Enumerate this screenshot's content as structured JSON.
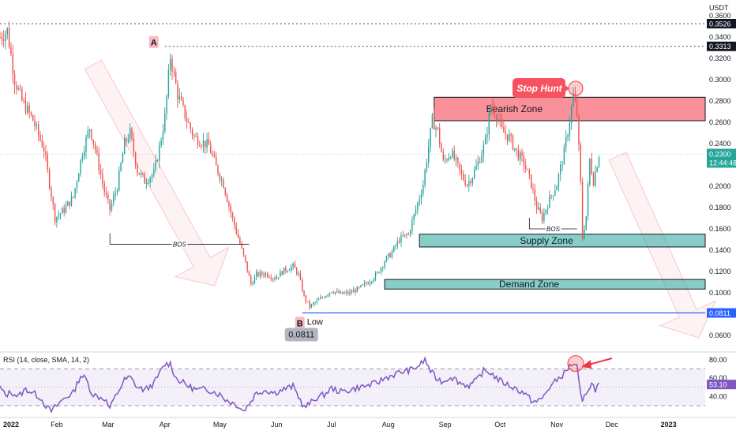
{
  "chart_data": [
    {
      "type": "candlestick",
      "currency_label": "USDT",
      "y_axis_ticks": [
        "0.3600",
        "0.3400",
        "0.3200",
        "0.3000",
        "0.2800",
        "0.2600",
        "0.2400",
        "0.2200",
        "0.2000",
        "0.1800",
        "0.1600",
        "0.1400",
        "0.1200",
        "0.1000",
        "0.0800",
        "0.0600"
      ],
      "ylim": [
        0.05,
        0.362
      ],
      "x_axis_ticks": [
        {
          "label": "2022",
          "t": 0
        },
        {
          "label": "Feb",
          "t": 31
        },
        {
          "label": "Mar",
          "t": 59
        },
        {
          "label": "Apr",
          "t": 90
        },
        {
          "label": "May",
          "t": 120
        },
        {
          "label": "Jun",
          "t": 151
        },
        {
          "label": "Jul",
          "t": 181
        },
        {
          "label": "Aug",
          "t": 212
        },
        {
          "label": "Sep",
          "t": 243
        },
        {
          "label": "Oct",
          "t": 273
        },
        {
          "label": "Nov",
          "t": 304
        },
        {
          "label": "Dec",
          "t": 334
        },
        {
          "label": "2023",
          "t": 365
        }
      ],
      "xlim": [
        0,
        385
      ],
      "closes_path": [
        [
          0,
          0.34
        ],
        [
          4,
          0.346
        ],
        [
          8,
          0.3
        ],
        [
          12,
          0.28
        ],
        [
          18,
          0.262
        ],
        [
          24,
          0.235
        ],
        [
          28,
          0.192
        ],
        [
          30,
          0.17
        ],
        [
          35,
          0.178
        ],
        [
          40,
          0.19
        ],
        [
          45,
          0.232
        ],
        [
          49,
          0.255
        ],
        [
          52,
          0.235
        ],
        [
          57,
          0.195
        ],
        [
          60,
          0.178
        ],
        [
          64,
          0.2
        ],
        [
          68,
          0.24
        ],
        [
          71,
          0.25
        ],
        [
          75,
          0.215
        ],
        [
          79,
          0.205
        ],
        [
          84,
          0.212
        ],
        [
          87,
          0.236
        ],
        [
          90,
          0.265
        ],
        [
          93,
          0.322
        ],
        [
          97,
          0.286
        ],
        [
          102,
          0.262
        ],
        [
          106,
          0.246
        ],
        [
          110,
          0.242
        ],
        [
          114,
          0.238
        ],
        [
          118,
          0.218
        ],
        [
          122,
          0.202
        ],
        [
          126,
          0.175
        ],
        [
          130,
          0.152
        ],
        [
          134,
          0.128
        ],
        [
          137,
          0.108
        ],
        [
          140,
          0.117
        ],
        [
          145,
          0.118
        ],
        [
          150,
          0.114
        ],
        [
          155,
          0.121
        ],
        [
          160,
          0.125
        ],
        [
          163,
          0.117
        ],
        [
          166,
          0.096
        ],
        [
          169,
          0.087
        ],
        [
          173,
          0.092
        ],
        [
          177,
          0.097
        ],
        [
          181,
          0.102
        ],
        [
          186,
          0.099
        ],
        [
          191,
          0.1
        ],
        [
          196,
          0.104
        ],
        [
          201,
          0.11
        ],
        [
          206,
          0.118
        ],
        [
          210,
          0.13
        ],
        [
          214,
          0.138
        ],
        [
          218,
          0.15
        ],
        [
          223,
          0.155
        ],
        [
          227,
          0.178
        ],
        [
          231,
          0.202
        ],
        [
          234,
          0.238
        ],
        [
          236,
          0.262
        ],
        [
          239,
          0.252
        ],
        [
          242,
          0.222
        ],
        [
          246,
          0.232
        ],
        [
          249,
          0.222
        ],
        [
          252,
          0.21
        ],
        [
          255,
          0.202
        ],
        [
          258,
          0.21
        ],
        [
          261,
          0.222
        ],
        [
          265,
          0.242
        ],
        [
          268,
          0.276
        ],
        [
          271,
          0.268
        ],
        [
          274,
          0.252
        ],
        [
          278,
          0.246
        ],
        [
          282,
          0.232
        ],
        [
          286,
          0.222
        ],
        [
          290,
          0.202
        ],
        [
          293,
          0.18
        ],
        [
          296,
          0.17
        ],
        [
          300,
          0.188
        ],
        [
          304,
          0.202
        ],
        [
          308,
          0.232
        ],
        [
          311,
          0.262
        ],
        [
          313,
          0.285
        ],
        [
          315,
          0.268
        ],
        [
          317,
          0.202
        ],
        [
          318,
          0.152
        ],
        [
          320,
          0.172
        ],
        [
          322,
          0.225
        ],
        [
          324,
          0.205
        ],
        [
          327,
          0.23
        ]
      ],
      "current_price": "0.2300",
      "countdown": "12:44:48",
      "level_high_1": "0.3526",
      "level_high_2": "0.3313",
      "level_low": "0.0811",
      "supply_zone": {
        "label": "Supply Zone",
        "y0": 0.143,
        "y1": 0.155,
        "t0": 229,
        "t1": 385
      },
      "demand_zone": {
        "label": "Demand Zone",
        "y0": 0.1035,
        "y1": 0.1125,
        "t0": 210,
        "t1": 385
      },
      "bearish_zone": {
        "label": "Bearish Zone",
        "y0": 0.2615,
        "y1": 0.2835,
        "t0": 237,
        "t1": 385
      },
      "stop_hunt": {
        "label": "Stop Hunt",
        "t": 313,
        "y": 0.2948
      },
      "point_a": {
        "label": "A",
        "t": 90,
        "y": 0.3313
      },
      "point_b": {
        "label": "B",
        "t": 165,
        "y": 0.0811
      },
      "low_label": "Low",
      "low_value": "0.0811",
      "bos_1": {
        "label": "BOS",
        "t0": 60,
        "t1": 136,
        "y": 0.1455
      },
      "bos_2": {
        "label": "BOS",
        "t0": 289,
        "t1": 315,
        "y": 0.16
      }
    },
    {
      "type": "line",
      "title": "RSI (14, close, SMA, 14, 2)",
      "y_axis_ticks": [
        "80.00",
        "60.00",
        "40.00"
      ],
      "ylim": [
        22,
        90
      ],
      "upper_band": 70,
      "lower_band": 30,
      "mid_band": 50,
      "current_value": "53.10",
      "rsi_path": [
        [
          0,
          50
        ],
        [
          3,
          41
        ],
        [
          6,
          45
        ],
        [
          10,
          40
        ],
        [
          14,
          48
        ],
        [
          18,
          44
        ],
        [
          22,
          39
        ],
        [
          26,
          27
        ],
        [
          28,
          24
        ],
        [
          31,
          30
        ],
        [
          35,
          38
        ],
        [
          40,
          44
        ],
        [
          44,
          63
        ],
        [
          47,
          59
        ],
        [
          50,
          44
        ],
        [
          53,
          40
        ],
        [
          57,
          38
        ],
        [
          60,
          27
        ],
        [
          63,
          40
        ],
        [
          68,
          58
        ],
        [
          71,
          61
        ],
        [
          75,
          50
        ],
        [
          79,
          47
        ],
        [
          84,
          54
        ],
        [
          87,
          65
        ],
        [
          90,
          75
        ],
        [
          93,
          76
        ],
        [
          96,
          60
        ],
        [
          100,
          55
        ],
        [
          104,
          50
        ],
        [
          108,
          47
        ],
        [
          112,
          48
        ],
        [
          116,
          46
        ],
        [
          120,
          42
        ],
        [
          123,
          37
        ],
        [
          126,
          34
        ],
        [
          130,
          30
        ],
        [
          133,
          24
        ],
        [
          136,
          32
        ],
        [
          140,
          44
        ],
        [
          145,
          47
        ],
        [
          150,
          44
        ],
        [
          155,
          48
        ],
        [
          160,
          51
        ],
        [
          163,
          40
        ],
        [
          166,
          28
        ],
        [
          169,
          32
        ],
        [
          173,
          39
        ],
        [
          177,
          42
        ],
        [
          181,
          49
        ],
        [
          186,
          45
        ],
        [
          191,
          47
        ],
        [
          196,
          50
        ],
        [
          201,
          52
        ],
        [
          206,
          55
        ],
        [
          210,
          60
        ],
        [
          214,
          63
        ],
        [
          218,
          66
        ],
        [
          222,
          68
        ],
        [
          226,
          70
        ],
        [
          230,
          76
        ],
        [
          232,
          80
        ],
        [
          235,
          68
        ],
        [
          238,
          60
        ],
        [
          242,
          56
        ],
        [
          246,
          62
        ],
        [
          249,
          58
        ],
        [
          252,
          54
        ],
        [
          256,
          52
        ],
        [
          260,
          57
        ],
        [
          264,
          68
        ],
        [
          268,
          66
        ],
        [
          271,
          60
        ],
        [
          274,
          56
        ],
        [
          278,
          52
        ],
        [
          282,
          48
        ],
        [
          286,
          44
        ],
        [
          290,
          36
        ],
        [
          293,
          34
        ],
        [
          296,
          38
        ],
        [
          300,
          50
        ],
        [
          304,
          58
        ],
        [
          308,
          65
        ],
        [
          311,
          73
        ],
        [
          313,
          76
        ],
        [
          315,
          72
        ],
        [
          317,
          40
        ],
        [
          318,
          33
        ],
        [
          320,
          45
        ],
        [
          323,
          54
        ],
        [
          325,
          48
        ],
        [
          327,
          53
        ]
      ]
    }
  ]
}
